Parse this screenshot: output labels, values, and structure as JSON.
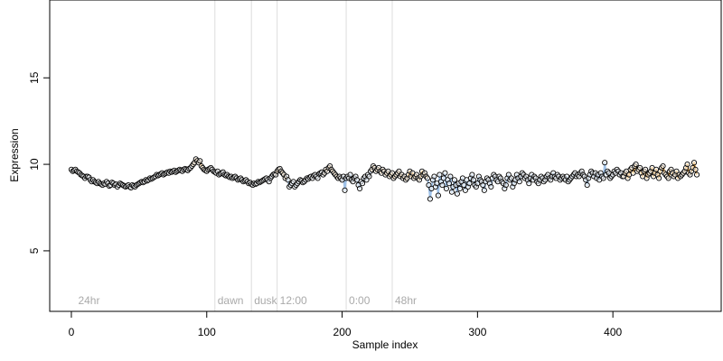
{
  "chart_data": {
    "type": "scatter",
    "title": "",
    "xlabel": "Sample index",
    "ylabel": "Expression",
    "xlim": [
      -16,
      480
    ],
    "ylim": [
      1.5,
      19.5
    ],
    "x_ticks": [
      0,
      100,
      200,
      300,
      400
    ],
    "y_ticks": [
      5,
      10,
      15
    ],
    "grid": false,
    "markers": [
      {
        "label": "24hr",
        "x": 3
      },
      {
        "label": "dawn",
        "x": 106
      },
      {
        "label": "dusk",
        "x": 133
      },
      {
        "label": "12:00",
        "x": 152
      },
      {
        "label": "0:00",
        "x": 203
      },
      {
        "label": "48hr",
        "x": 237
      }
    ],
    "colors": {
      "line_blue": "#9ec1e8",
      "line_orange": "#f0a030",
      "point_stroke": "#000000",
      "point_fill": "#ffffff",
      "marker_line": "#dddddd",
      "marker_text": "#aaaaaa",
      "axis": "#000000"
    },
    "series": [
      {
        "line_color": "blue",
        "start_x": 0,
        "points": [
          9.7,
          9.6,
          9.65,
          9.7,
          9.6,
          9.55,
          9.5,
          9.4,
          9.35,
          9.3,
          9.2,
          9.3,
          9.3,
          9.25,
          9.1,
          9.0,
          9.1,
          9.0,
          8.95,
          8.9,
          9.0,
          8.9,
          8.85,
          8.8,
          8.9,
          8.85,
          9.0,
          8.9,
          8.75,
          8.8,
          8.95,
          8.9,
          8.8,
          8.85,
          8.7,
          8.8,
          8.9,
          8.85,
          8.8,
          8.75,
          8.7,
          8.75,
          8.8,
          8.7,
          8.65,
          8.8,
          8.75,
          8.7,
          8.8,
          8.85,
          8.9,
          8.95,
          9.0,
          8.95,
          9.0,
          9.1,
          9.05,
          9.1,
          9.2,
          9.15,
          9.2,
          9.25,
          9.3,
          9.4,
          9.35,
          9.4,
          9.45,
          9.5,
          9.4,
          9.45,
          9.5,
          9.55,
          9.5,
          9.6,
          9.55,
          9.6,
          9.65,
          9.55,
          9.6,
          9.65,
          9.7,
          9.65,
          9.6,
          9.7,
          9.75,
          9.7,
          9.65,
          9.75,
          9.8,
          9.9
        ]
      },
      {
        "line_color": "orange",
        "start_x": 90,
        "points": [
          10.0,
          10.1,
          10.3,
          10.2,
          10.1,
          10.2,
          9.9,
          9.8,
          9.7,
          9.65,
          9.6,
          9.7,
          9.75,
          9.8
        ]
      },
      {
        "line_color": "blue",
        "start_x": 104,
        "points": [
          9.7,
          9.6,
          9.55,
          9.5,
          9.6,
          9.4,
          9.45,
          9.5,
          9.55,
          9.4,
          9.35,
          9.4,
          9.3,
          9.25,
          9.3,
          9.2,
          9.25,
          9.3,
          9.2,
          9.1,
          9.15,
          9.2,
          9.1,
          9.0,
          9.05,
          9.1,
          9.0,
          8.9,
          8.95,
          8.85,
          8.8,
          8.9,
          8.85,
          8.9,
          9.0,
          8.95,
          9.0,
          9.05,
          9.1,
          9.15,
          9.2,
          9.1,
          9.0,
          9.2,
          9.3,
          9.4,
          9.45
        ]
      },
      {
        "line_color": "orange",
        "start_x": 151,
        "points": [
          9.4,
          9.6,
          9.7,
          9.75,
          9.6,
          9.5,
          9.4,
          9.2,
          9.3
        ]
      },
      {
        "line_color": "blue",
        "start_x": 160,
        "points": [
          9.1,
          8.7,
          8.8,
          8.9,
          9.0,
          8.7,
          8.8,
          8.9,
          9.0,
          9.1,
          9.05,
          8.95,
          9.0,
          9.1,
          9.2,
          9.15,
          9.25,
          9.3,
          9.2,
          9.35,
          9.4,
          9.3,
          9.2,
          9.45,
          9.5,
          9.55,
          9.4
        ]
      },
      {
        "line_color": "orange",
        "start_x": 187,
        "points": [
          9.5,
          9.7,
          9.6,
          9.8,
          9.9,
          9.7,
          9.6,
          9.5,
          9.4,
          9.3,
          9.2,
          9.3
        ]
      },
      {
        "line_color": "blue",
        "start_x": 199,
        "points": [
          9.2,
          9.1,
          9.3,
          8.5,
          9.2,
          9.3,
          9.2,
          9.4,
          9.1,
          9.0,
          9.2,
          9.3,
          9.1,
          8.8,
          8.6,
          9.0,
          8.9,
          9.2,
          9.3,
          9.1,
          9.4,
          9.3,
          9.6
        ]
      },
      {
        "line_color": "orange",
        "start_x": 222,
        "points": [
          9.7,
          9.9,
          9.8,
          9.6,
          9.7,
          9.8,
          9.6,
          9.5,
          9.7,
          9.6,
          9.4,
          9.5,
          9.6,
          9.3,
          9.4,
          9.5,
          9.2,
          9.3,
          9.4,
          9.5,
          9.6,
          9.3,
          9.4,
          9.2,
          9.3,
          9.1,
          9.2,
          9.4,
          9.6,
          9.3,
          9.5,
          9.2,
          9.3,
          9.4,
          9.2,
          9.1,
          9.3,
          9.6,
          9.4,
          9.5,
          9.3,
          9.2
        ]
      },
      {
        "line_color": "blue",
        "start_x": 264,
        "points": [
          8.8,
          8.0,
          8.6,
          9.1,
          9.3,
          8.7,
          8.9,
          8.2,
          9.4,
          9.0,
          8.8,
          9.2,
          9.5,
          8.6,
          9.1,
          8.9,
          9.3,
          8.4,
          8.7,
          9.1,
          8.8,
          8.3,
          8.9,
          8.6,
          9.0,
          9.2,
          8.8,
          8.5,
          9.1,
          8.7,
          8.9,
          9.2,
          9.4,
          9.1,
          8.8,
          8.7,
          8.9,
          9.3,
          9.1,
          9.0,
          8.8,
          8.5,
          9.0,
          9.2,
          9.1,
          8.9,
          8.7,
          9.2,
          9.4,
          9.3,
          9.1,
          9.0,
          9.3,
          9.2,
          9.0,
          8.9,
          8.6,
          8.8,
          9.2,
          9.4,
          9.1,
          9.2,
          8.7,
          8.9,
          9.1,
          9.4,
          9.2,
          9.0,
          9.3,
          9.5,
          9.4,
          9.2,
          9.3,
          9.1,
          8.9,
          9.2,
          9.4,
          9.1,
          9.3,
          9.2,
          9.0,
          8.9,
          9.1,
          9.3,
          9.2,
          9.0,
          9.1,
          9.3,
          9.4,
          9.2,
          9.1,
          9.3,
          9.5,
          9.3,
          9.2,
          9.4,
          9.3,
          9.1,
          9.2,
          9.3,
          9.2,
          9.1,
          9.3,
          9.0,
          9.1,
          9.2,
          9.3,
          9.4,
          9.5,
          9.3,
          9.4,
          9.3,
          9.5,
          9.6,
          9.4,
          9.3,
          9.1,
          8.8,
          9.2,
          9.4,
          9.6,
          9.5,
          9.3,
          9.5,
          9.2,
          9.4,
          9.1,
          9.5,
          9.3,
          9.2,
          10.1,
          9.4,
          9.6,
          9.5,
          9.2,
          9.3,
          9.4,
          9.6,
          9.5,
          9.7,
          9.6,
          9.4,
          9.5,
          9.3
        ]
      },
      {
        "line_color": "orange",
        "start_x": 408,
        "points": [
          9.3,
          9.5,
          9.6,
          9.2,
          9.4,
          9.7,
          9.8,
          9.5,
          9.9,
          10.0,
          9.6,
          9.7,
          9.8,
          9.5,
          9.3,
          9.6,
          9.7,
          9.2,
          9.4,
          9.5,
          9.6,
          9.8,
          9.3,
          9.5,
          9.7,
          9.4,
          9.2,
          9.6,
          9.8,
          9.9,
          9.5,
          9.4,
          9.3,
          9.2,
          9.6,
          9.7,
          9.5,
          9.3,
          9.4,
          9.6,
          9.2,
          9.4,
          9.3,
          9.4,
          9.5,
          9.6,
          9.8,
          10.0,
          9.5,
          9.4,
          9.6,
          9.8,
          10.1,
          9.7,
          9.4
        ]
      }
    ]
  }
}
